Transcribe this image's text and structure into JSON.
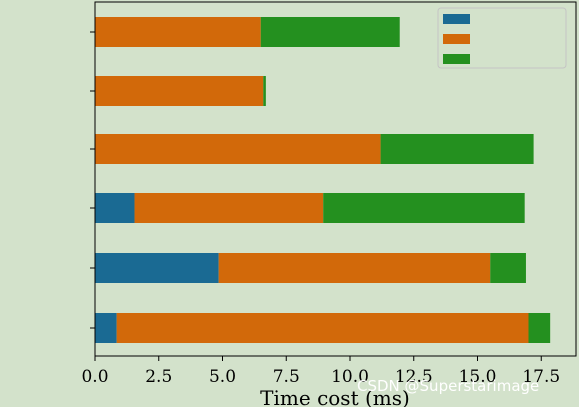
{
  "chart_data": {
    "type": "bar",
    "orientation": "horizontal",
    "stacked": true,
    "title": "",
    "xlabel": "Time cost (ms)",
    "ylabel": "",
    "xlim": [
      0,
      18.2
    ],
    "xticks": [
      "0.0",
      "2.5",
      "5.0",
      "7.5",
      "10.0",
      "12.5",
      "15.0",
      "17.5"
    ],
    "grid": false,
    "legend_position": "top-right",
    "categories": [
      "",
      "",
      "",
      "",
      "",
      ""
    ],
    "series": [
      {
        "name": "",
        "color": "#1a6a93",
        "values": [
          0.0,
          0.0,
          0.0,
          1.55,
          4.85,
          0.85
        ]
      },
      {
        "name": "",
        "color": "#d2690a",
        "values": [
          6.5,
          6.6,
          11.2,
          7.4,
          10.65,
          16.15
        ]
      },
      {
        "name": "",
        "color": "#24901f",
        "values": [
          5.45,
          0.1,
          6.0,
          7.9,
          1.4,
          0.85
        ]
      }
    ]
  },
  "watermark": "CSDN @Superstarimage"
}
